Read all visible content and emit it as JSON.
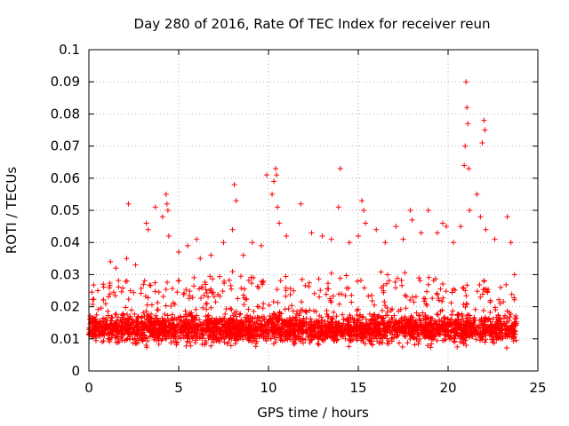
{
  "chart_data": {
    "type": "scatter",
    "title": "Day 280 of 2016, Rate Of TEC Index for receiver reun",
    "xlabel": "GPS time / hours",
    "ylabel": "ROTI / TECUs",
    "xlim": [
      0,
      25
    ],
    "ylim": [
      0,
      0.1
    ],
    "xticks": [
      "0",
      "5",
      "10",
      "15",
      "20",
      "25"
    ],
    "yticks": [
      "0",
      "0.01",
      "0.02",
      "0.03",
      "0.04",
      "0.05",
      "0.06",
      "0.07",
      "0.08",
      "0.09",
      "0.1"
    ],
    "grid": true,
    "marker": "+",
    "color": "#ff0000",
    "series": [
      {
        "name": "ROTI",
        "points": [
          [
            0.1,
            0.012
          ],
          [
            0.5,
            0.025
          ],
          [
            0.8,
            0.027
          ],
          [
            1.2,
            0.034
          ],
          [
            1.5,
            0.032
          ],
          [
            2.1,
            0.035
          ],
          [
            2.2,
            0.052
          ],
          [
            2.6,
            0.033
          ],
          [
            3.2,
            0.046
          ],
          [
            3.3,
            0.044
          ],
          [
            3.7,
            0.051
          ],
          [
            4.1,
            0.048
          ],
          [
            4.3,
            0.055
          ],
          [
            4.35,
            0.052
          ],
          [
            4.4,
            0.05
          ],
          [
            4.45,
            0.042
          ],
          [
            5.0,
            0.037
          ],
          [
            5.5,
            0.039
          ],
          [
            6.0,
            0.041
          ],
          [
            6.2,
            0.035
          ],
          [
            6.8,
            0.036
          ],
          [
            7.5,
            0.04
          ],
          [
            8.0,
            0.044
          ],
          [
            8.1,
            0.058
          ],
          [
            8.2,
            0.053
          ],
          [
            8.6,
            0.036
          ],
          [
            9.1,
            0.04
          ],
          [
            9.6,
            0.039
          ],
          [
            9.9,
            0.061
          ],
          [
            10.2,
            0.055
          ],
          [
            10.3,
            0.059
          ],
          [
            10.4,
            0.063
          ],
          [
            10.45,
            0.061
          ],
          [
            10.5,
            0.051
          ],
          [
            10.6,
            0.046
          ],
          [
            11.0,
            0.042
          ],
          [
            11.8,
            0.052
          ],
          [
            12.4,
            0.043
          ],
          [
            13.0,
            0.042
          ],
          [
            13.5,
            0.041
          ],
          [
            13.9,
            0.051
          ],
          [
            14.0,
            0.063
          ],
          [
            14.5,
            0.04
          ],
          [
            15.0,
            0.042
          ],
          [
            15.2,
            0.053
          ],
          [
            15.3,
            0.05
          ],
          [
            15.4,
            0.046
          ],
          [
            16.0,
            0.044
          ],
          [
            16.5,
            0.04
          ],
          [
            17.1,
            0.045
          ],
          [
            17.5,
            0.041
          ],
          [
            17.9,
            0.05
          ],
          [
            18.0,
            0.047
          ],
          [
            18.5,
            0.043
          ],
          [
            18.9,
            0.05
          ],
          [
            19.4,
            0.043
          ],
          [
            19.7,
            0.046
          ],
          [
            19.9,
            0.045
          ],
          [
            20.3,
            0.04
          ],
          [
            20.7,
            0.045
          ],
          [
            20.9,
            0.064
          ],
          [
            20.95,
            0.07
          ],
          [
            21.0,
            0.09
          ],
          [
            21.05,
            0.082
          ],
          [
            21.1,
            0.077
          ],
          [
            21.15,
            0.063
          ],
          [
            21.2,
            0.05
          ],
          [
            21.6,
            0.055
          ],
          [
            21.8,
            0.048
          ],
          [
            21.9,
            0.071
          ],
          [
            22.0,
            0.078
          ],
          [
            22.05,
            0.075
          ],
          [
            22.1,
            0.044
          ],
          [
            22.6,
            0.041
          ],
          [
            23.3,
            0.048
          ],
          [
            23.5,
            0.04
          ],
          [
            23.7,
            0.03
          ]
        ],
        "baseline": {
          "x_range": [
            0,
            23.8
          ],
          "y_typical_range": [
            0.004,
            0.022
          ],
          "y_dense_center": 0.013,
          "y_min": 0.003
        }
      }
    ]
  }
}
